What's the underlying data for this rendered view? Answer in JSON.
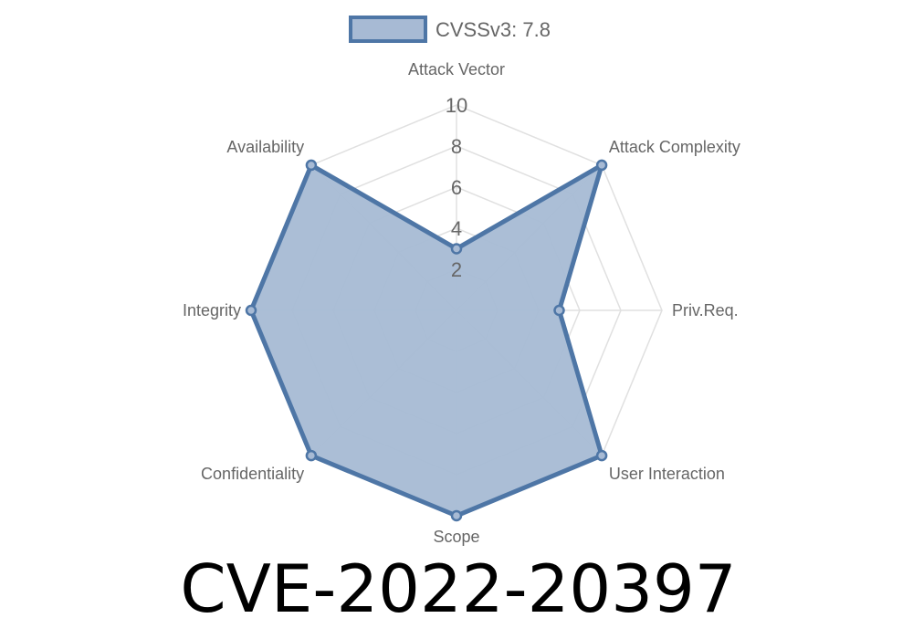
{
  "chart_data": {
    "type": "radar",
    "title": "CVE-2022-20397",
    "categories": [
      "Attack Vector",
      "Attack Complexity",
      "Priv.Req.",
      "User Interaction",
      "Scope",
      "Confidentiality",
      "Integrity",
      "Availability"
    ],
    "series": [
      {
        "name": "CVSSv3: 7.8",
        "values": [
          3,
          10,
          5,
          10,
          10,
          10,
          10,
          10
        ]
      }
    ],
    "rlim": [
      0,
      10
    ],
    "ticks": [
      "2",
      "4",
      "6",
      "8",
      "10"
    ],
    "tick_values": [
      2,
      4,
      6,
      8,
      10
    ],
    "grid": true,
    "legend": "top",
    "colors": {
      "stroke": "#4e76a6",
      "fill": "#a7bad4",
      "grid": "#e0e0e0"
    }
  }
}
